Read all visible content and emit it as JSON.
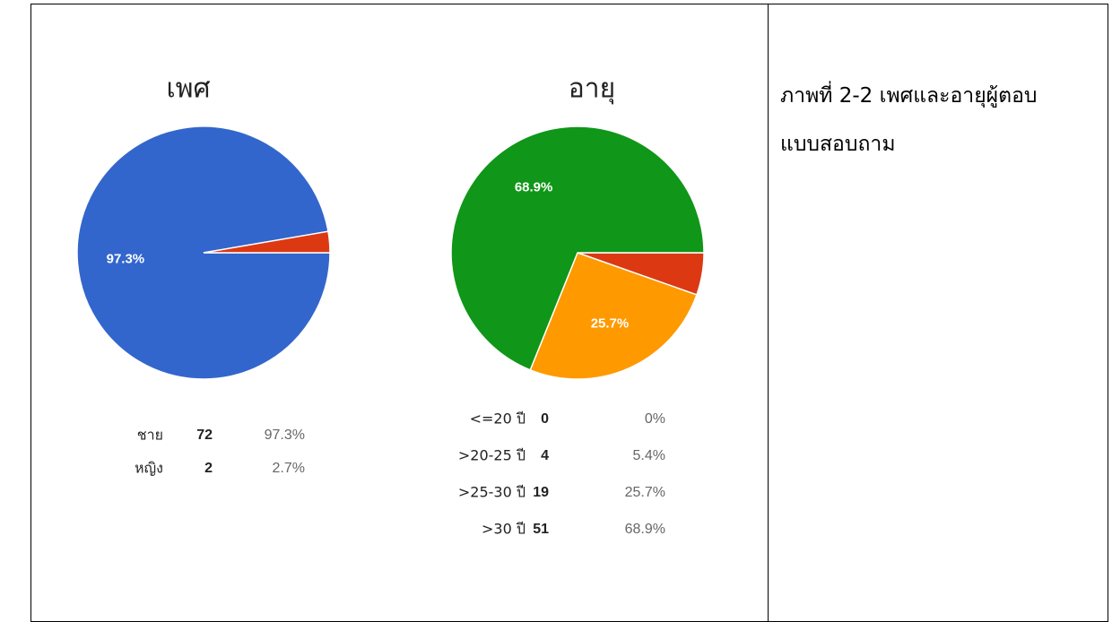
{
  "chart_data": [
    {
      "type": "pie",
      "title": "เพศ",
      "categories": [
        "ชาย",
        "หญิง"
      ],
      "counts": [
        72,
        2
      ],
      "values": [
        97.3,
        2.7
      ],
      "value_labels": [
        "97.3%",
        "2.7%"
      ],
      "colors": [
        "#3366cc",
        "#dc3912"
      ]
    },
    {
      "type": "pie",
      "title": "อายุ",
      "categories": [
        "<=20 ปี",
        ">20-25 ปี",
        ">25-30 ปี",
        ">30 ปี"
      ],
      "counts": [
        0,
        4,
        19,
        51
      ],
      "values": [
        0,
        5.4,
        25.7,
        68.9
      ],
      "value_labels": [
        "0%",
        "5.4%",
        "25.7%",
        "68.9%"
      ],
      "colors": [
        "#3366cc",
        "#dc3912",
        "#ff9900",
        "#109618"
      ]
    }
  ],
  "caption": "ภาพที่ 2-2 เพศและอายุผู้ตอบแบบสอบถาม"
}
